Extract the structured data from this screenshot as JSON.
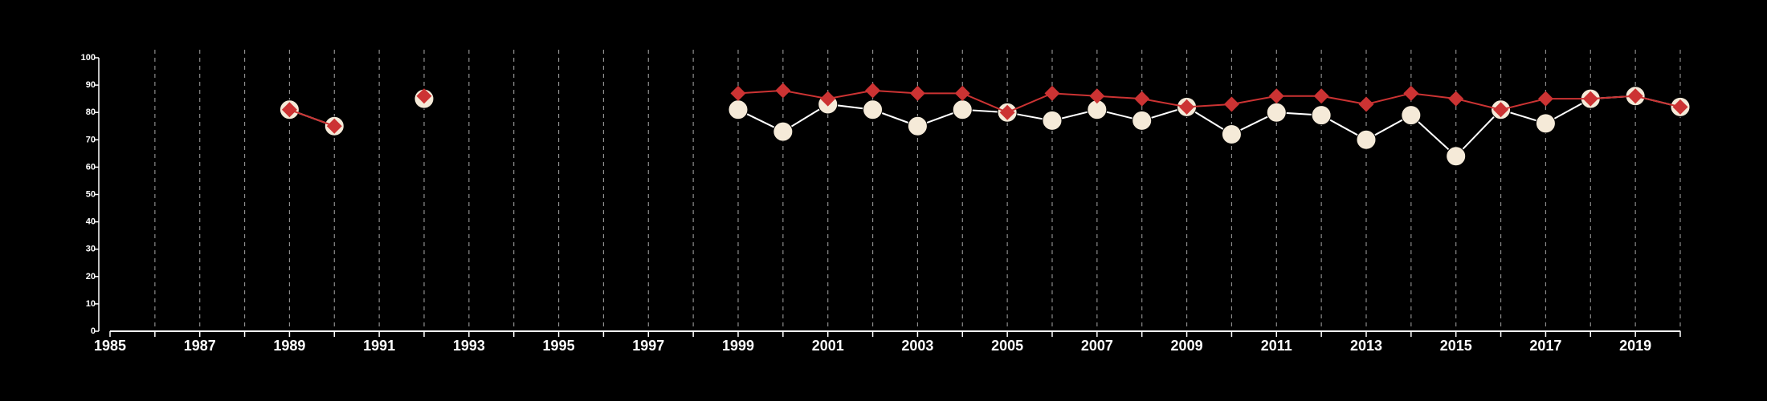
{
  "chart_data": {
    "type": "line",
    "title": "",
    "xlabel": "",
    "ylabel": "",
    "xlim": [
      1985,
      2020
    ],
    "ylim": [
      0,
      100
    ],
    "x_ticks": [
      "1985",
      "1987",
      "1989",
      "1991",
      "1993",
      "1995",
      "1997",
      "1999",
      "2001",
      "2003",
      "2005",
      "2007",
      "2009",
      "2011",
      "2013",
      "2015",
      "2017",
      "2019"
    ],
    "y_ticks": [
      "0",
      "10",
      "20",
      "30",
      "40",
      "50",
      "60",
      "70",
      "80",
      "90",
      "100"
    ],
    "grid": "vertical dashed lines at every year",
    "colors": {
      "background": "#000000",
      "axis": "#ffffff",
      "grid": "#8a8a8a"
    },
    "series": [
      {
        "marker": "circle",
        "color": "#f5ead8",
        "line_color": "#ffffff",
        "points": [
          [
            1989,
            81
          ],
          [
            1990,
            75
          ],
          [
            1992,
            85
          ],
          [
            1999,
            81
          ],
          [
            2000,
            73
          ],
          [
            2001,
            83
          ],
          [
            2002,
            81
          ],
          [
            2003,
            75
          ],
          [
            2004,
            81
          ],
          [
            2005,
            80
          ],
          [
            2006,
            77
          ],
          [
            2007,
            81
          ],
          [
            2008,
            77
          ],
          [
            2009,
            82
          ],
          [
            2010,
            72
          ],
          [
            2011,
            80
          ],
          [
            2012,
            79
          ],
          [
            2013,
            70
          ],
          [
            2014,
            79
          ],
          [
            2015,
            64
          ],
          [
            2016,
            81
          ],
          [
            2017,
            76
          ],
          [
            2018,
            85
          ],
          [
            2019,
            86
          ],
          [
            2020,
            82
          ]
        ]
      },
      {
        "marker": "diamond",
        "color": "#cc3333",
        "line_color": "#cc3333",
        "points": [
          [
            1989,
            81
          ],
          [
            1990,
            75
          ],
          [
            1992,
            86
          ],
          [
            1999,
            87
          ],
          [
            2000,
            88
          ],
          [
            2001,
            85
          ],
          [
            2002,
            88
          ],
          [
            2003,
            87
          ],
          [
            2004,
            87
          ],
          [
            2005,
            80
          ],
          [
            2006,
            87
          ],
          [
            2007,
            86
          ],
          [
            2008,
            85
          ],
          [
            2009,
            82
          ],
          [
            2010,
            83
          ],
          [
            2011,
            86
          ],
          [
            2012,
            86
          ],
          [
            2013,
            83
          ],
          [
            2014,
            87
          ],
          [
            2015,
            85
          ],
          [
            2016,
            81
          ],
          [
            2017,
            85
          ],
          [
            2018,
            85
          ],
          [
            2019,
            86
          ],
          [
            2020,
            82
          ]
        ]
      }
    ]
  }
}
